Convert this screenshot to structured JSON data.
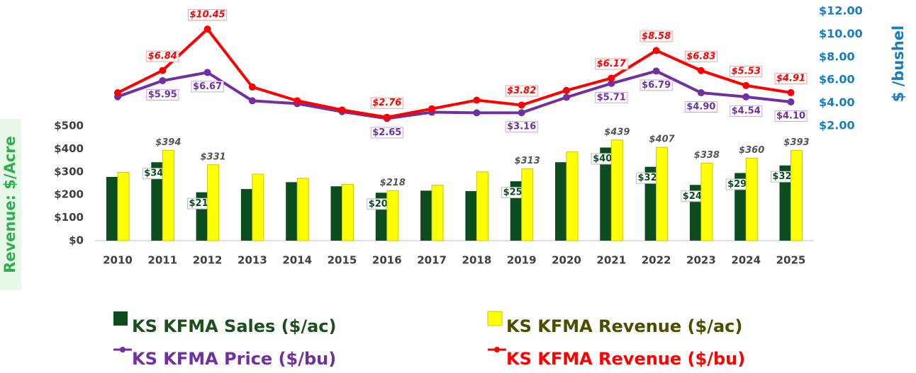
{
  "chart_data": {
    "type": "bar",
    "categories": [
      "2010",
      "2011",
      "2012",
      "2013",
      "2014",
      "2015",
      "2016",
      "2017",
      "2018",
      "2019",
      "2020",
      "2021",
      "2022",
      "2023",
      "2024",
      "2025"
    ],
    "ylabel": "Revenue: $/Acre",
    "y2label": "$ /bushel",
    "ylim": [
      0,
      1000
    ],
    "yticks": [
      {
        "value": 0,
        "label": "$0"
      },
      {
        "value": 100,
        "label": "$100"
      },
      {
        "value": 200,
        "label": "$200"
      },
      {
        "value": 300,
        "label": "$300"
      },
      {
        "value": 400,
        "label": "$400"
      },
      {
        "value": 500,
        "label": "$500"
      }
    ],
    "y2lim": [
      -8,
      12
    ],
    "y2ticks": [
      {
        "value": 2,
        "label": "$2.00"
      },
      {
        "value": 4,
        "label": "$4.00"
      },
      {
        "value": 6,
        "label": "$6.00"
      },
      {
        "value": 8,
        "label": "$8.00"
      },
      {
        "value": 10,
        "label": "$10.00"
      },
      {
        "value": 12,
        "label": "$12.00"
      }
    ],
    "series": [
      {
        "name": "KS KFMA Sales ($/ac)",
        "type": "bar",
        "color": "#0b4d1f",
        "values": [
          278,
          342,
          211,
          225,
          255,
          237,
          209,
          218,
          216,
          259,
          342,
          406,
          322,
          243,
          295,
          328
        ],
        "value_labels": [
          null,
          "$342",
          "$211",
          null,
          null,
          null,
          "$209",
          null,
          null,
          "$259",
          null,
          "$406",
          "$322",
          "$243",
          "$295",
          "$328"
        ]
      },
      {
        "name": "KS KFMA Revenue ($/ac)",
        "type": "bar",
        "color": "#ffff00",
        "values": [
          298,
          394,
          331,
          290,
          272,
          245,
          218,
          242,
          300,
          313,
          387,
          439,
          407,
          338,
          360,
          393
        ],
        "value_labels": [
          null,
          "$394",
          "$331",
          null,
          null,
          null,
          "$218",
          null,
          null,
          "$313",
          null,
          "$439",
          "$407",
          "$338",
          "$360",
          "$393"
        ]
      },
      {
        "name": "KS KFMA Price ($/bu)",
        "type": "line",
        "axis": "y2",
        "color": "#7030a0",
        "values": [
          4.55,
          5.95,
          6.67,
          4.2,
          3.95,
          3.25,
          2.65,
          3.2,
          3.15,
          3.16,
          4.5,
          5.71,
          6.79,
          4.9,
          4.54,
          4.1
        ],
        "value_labels": [
          null,
          "$5.95",
          "$6.67",
          null,
          null,
          null,
          "$2.65",
          null,
          null,
          "$3.16",
          null,
          "$5.71",
          "$6.79",
          "$4.90",
          "$4.54",
          "$4.10"
        ]
      },
      {
        "name": "KS KFMA Revenue ($/bu)",
        "type": "line",
        "axis": "y2",
        "color": "#ff0000",
        "values": [
          4.9,
          6.84,
          10.45,
          5.4,
          4.2,
          3.4,
          2.76,
          3.5,
          4.25,
          3.82,
          5.1,
          6.17,
          8.58,
          6.83,
          5.53,
          4.91
        ],
        "value_labels": [
          null,
          "$6.84",
          "$10.45",
          null,
          null,
          null,
          "$2.76",
          null,
          null,
          "$3.82",
          null,
          "$6.17",
          "$8.58",
          "$6.83",
          "$5.53",
          "$4.91"
        ]
      }
    ]
  }
}
